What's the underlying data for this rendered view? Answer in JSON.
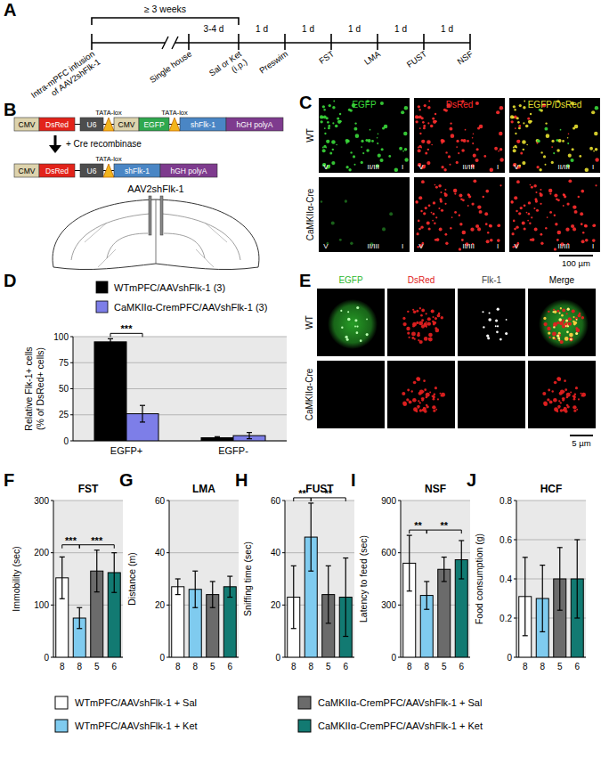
{
  "timeline": {
    "panel_label": "A",
    "span_label": "≥ 3 weeks",
    "events": [
      [
        "Intra-mPFC infusion",
        "of AAV2shFlk-1"
      ],
      [
        "Single house"
      ],
      [
        "Sal or Ket",
        "(i.p.)"
      ],
      [
        "Preswim"
      ],
      [
        "FST"
      ],
      [
        "LMA"
      ],
      [
        "FUST"
      ],
      [
        "NSF"
      ]
    ],
    "segment_labels": [
      null,
      "3-4 d",
      "1 d",
      "1 d",
      "1 d",
      "1 d",
      "1 d"
    ]
  },
  "construct": {
    "panel_label": "B",
    "before": [
      {
        "label": "CMV",
        "color": "#ddd3ad",
        "shape": "box"
      },
      {
        "label": "DsRed",
        "color": "#e2231a",
        "shape": "box"
      },
      {
        "label": "U6",
        "color": "#4d4d4d",
        "shape": "box"
      },
      {
        "label": "TATA-lox",
        "color": "#f2b51c",
        "shape": "lox"
      },
      {
        "label": "CMV",
        "color": "#ddd3ad",
        "shape": "box"
      },
      {
        "label": "EGFP",
        "color": "#2fa84f",
        "shape": "box"
      },
      {
        "label": "TATA-lox",
        "color": "#f2b51c",
        "shape": "lox"
      },
      {
        "label": "shFlk-1",
        "color": "#4a86c5",
        "shape": "box"
      },
      {
        "label": "hGH polyA",
        "color": "#7e3b8e",
        "shape": "box"
      }
    ],
    "after": [
      {
        "label": "CMV",
        "color": "#ddd3ad",
        "shape": "box"
      },
      {
        "label": "DsRed",
        "color": "#e2231a",
        "shape": "box"
      },
      {
        "label": "U6",
        "color": "#4d4d4d",
        "shape": "box"
      },
      {
        "label": "TATA-lox",
        "color": "#f2b51c",
        "shape": "lox"
      },
      {
        "label": "shFlk-1",
        "color": "#4a86c5",
        "shape": "box"
      },
      {
        "label": "hGH polyA",
        "color": "#7e3b8e",
        "shape": "box"
      }
    ],
    "cre_label": "+ Cre recombinase",
    "vector_label": "AAV2shFlk-1"
  },
  "micrographs_c": {
    "panel_label": "C",
    "channels": [
      {
        "label": "EGFP",
        "color": "#3ad83a"
      },
      {
        "label": "DsRed",
        "color": "#ff2d2d"
      },
      {
        "label": "EGFP/DsRed",
        "color": "#e8e030"
      }
    ],
    "rows": [
      "WT",
      "CaMKIIα-Cre"
    ],
    "layers": [
      "V",
      "II/III",
      "I"
    ],
    "scale_bar": "100 µm"
  },
  "chart_data": [
    {
      "panel_label": "D",
      "type": "bar",
      "ylabel": [
        "Relative Flk-1+ cells",
        "(% of DsRed+ cells)"
      ],
      "categories": [
        "EGFP+",
        "EGFP-"
      ],
      "series": [
        {
          "name": "WTmPFC/AAVshFlk-1 (3)",
          "color": "#000000",
          "values": [
            95,
            3
          ],
          "errors": [
            3,
            1
          ]
        },
        {
          "name": "CaMKIIα-CremPFC/AAVshFlk-1 (3)",
          "color": "#7d7ee8",
          "values": [
            26,
            5
          ],
          "errors": [
            8,
            3
          ]
        }
      ],
      "ylim": [
        0,
        100
      ],
      "yticks": [
        0,
        25,
        50,
        75,
        100
      ],
      "grid": true,
      "legend": "top",
      "annotations": [
        {
          "text": "***",
          "category": 0,
          "from": 0,
          "to": 1
        }
      ]
    },
    {
      "panel_label": "F",
      "type": "bar",
      "title": "FST",
      "ylabel": [
        "Immobility (sec)"
      ],
      "categories": [
        "8",
        "8",
        "5",
        "6"
      ],
      "values": [
        152,
        75,
        165,
        162
      ],
      "errors": [
        40,
        20,
        40,
        38
      ],
      "colors": [
        "#ffffff",
        "#7fcbef",
        "#6b6b6b",
        "#127a72"
      ],
      "ylim": [
        0,
        300
      ],
      "yticks": [
        0,
        100,
        200,
        300
      ],
      "grid": true,
      "annotations": [
        {
          "text": "***",
          "from": 0,
          "to": 1
        },
        {
          "text": "***",
          "from": 1,
          "to": 3
        }
      ]
    },
    {
      "panel_label": "G",
      "type": "bar",
      "title": "LMA",
      "ylabel": [
        "Distance (m)"
      ],
      "categories": [
        "8",
        "8",
        "5",
        "6"
      ],
      "values": [
        27,
        26,
        24,
        27
      ],
      "errors": [
        3,
        7,
        5,
        4
      ],
      "colors": [
        "#ffffff",
        "#7fcbef",
        "#6b6b6b",
        "#127a72"
      ],
      "ylim": [
        0,
        60
      ],
      "yticks": [
        0,
        20,
        40,
        60
      ],
      "grid": true,
      "annotations": []
    },
    {
      "panel_label": "H",
      "type": "bar",
      "title": "FUST",
      "ylabel": [
        "Sniffing time (sec)"
      ],
      "categories": [
        "8",
        "8",
        "5",
        "6"
      ],
      "values": [
        23,
        46,
        24,
        23
      ],
      "errors": [
        12,
        13,
        11,
        15
      ],
      "colors": [
        "#ffffff",
        "#7fcbef",
        "#6b6b6b",
        "#127a72"
      ],
      "ylim": [
        0,
        60
      ],
      "yticks": [
        0,
        20,
        40,
        60
      ],
      "grid": true,
      "annotations": [
        {
          "text": "**",
          "from": 0,
          "to": 1
        },
        {
          "text": "**",
          "from": 1,
          "to": 3
        }
      ]
    },
    {
      "panel_label": "I",
      "type": "bar",
      "title": "NSF",
      "ylabel": [
        "Latency to feed (sec)"
      ],
      "categories": [
        "8",
        "8",
        "5",
        "6"
      ],
      "values": [
        540,
        355,
        505,
        560
      ],
      "errors": [
        160,
        80,
        70,
        110
      ],
      "colors": [
        "#ffffff",
        "#7fcbef",
        "#6b6b6b",
        "#127a72"
      ],
      "ylim": [
        0,
        900
      ],
      "yticks": [
        0,
        300,
        600,
        900
      ],
      "grid": true,
      "annotations": [
        {
          "text": "**",
          "from": 0,
          "to": 1
        },
        {
          "text": "**",
          "from": 1,
          "to": 3
        }
      ]
    },
    {
      "panel_label": "J",
      "type": "bar",
      "title": "HCF",
      "ylabel": [
        "Food consumption (g)"
      ],
      "categories": [
        "8",
        "8",
        "5",
        "6"
      ],
      "values": [
        0.31,
        0.3,
        0.4,
        0.4
      ],
      "errors": [
        0.2,
        0.17,
        0.16,
        0.2
      ],
      "colors": [
        "#ffffff",
        "#7fcbef",
        "#6b6b6b",
        "#127a72"
      ],
      "ylim": [
        0,
        0.8
      ],
      "yticks": [
        0,
        0.2,
        0.4,
        0.6,
        0.8
      ],
      "grid": true,
      "annotations": []
    }
  ],
  "micrographs_e": {
    "panel_label": "E",
    "channels": [
      {
        "label": "EGFP",
        "color": "#2db82d"
      },
      {
        "label": "DsRed",
        "color": "#e02020"
      },
      {
        "label": "Flk-1",
        "color": "#444444"
      },
      {
        "label": "Merge",
        "color": "#000000"
      }
    ],
    "rows": [
      "WT",
      "CaMKIIα-Cre"
    ],
    "scale_bar": "5 µm"
  },
  "shared_legend": [
    {
      "name": "WTmPFC/AAVshFlk-1 + Sal",
      "color": "#ffffff"
    },
    {
      "name": "WTmPFC/AAVshFlk-1 + Ket",
      "color": "#7fcbef"
    },
    {
      "name": "CaMKIIα-CremPFC/AAVshFlk-1 + Sal",
      "color": "#6b6b6b"
    },
    {
      "name": "CaMKIIα-CremPFC/AAVshFlk-1 + Ket",
      "color": "#127a72"
    }
  ]
}
